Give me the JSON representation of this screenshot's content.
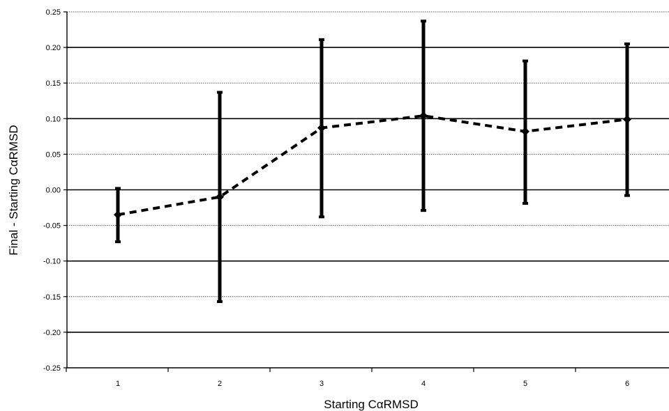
{
  "chart_data": {
    "type": "line",
    "title": "",
    "xlabel": "Starting CαRMSD",
    "ylabel": "Final - Starting CαRMSD",
    "categories": [
      "1",
      "2",
      "3",
      "4",
      "5",
      "6"
    ],
    "x": [
      1,
      2,
      3,
      4,
      5,
      6
    ],
    "series": [
      {
        "values": [
          -0.035,
          -0.01,
          0.087,
          0.104,
          0.082,
          0.099
        ],
        "error_low": [
          -0.073,
          -0.157,
          -0.038,
          -0.029,
          -0.019,
          -0.008
        ],
        "error_high": [
          0.002,
          0.137,
          0.211,
          0.237,
          0.181,
          0.205
        ],
        "line_style": "dashed",
        "marker": "diamond",
        "color": "#000000"
      }
    ],
    "ylim": [
      -0.25,
      0.25
    ],
    "y_ticks": [
      0.25,
      0.2,
      0.15,
      0.1,
      0.05,
      0.0,
      -0.05,
      -0.1,
      -0.15,
      -0.2,
      -0.25
    ],
    "y_tick_labels": [
      "0.25",
      "0.20",
      "0.15",
      "0.10",
      "0.05",
      "0.00",
      "-0.05",
      "-0.10",
      "-0.15",
      "-0.20",
      "-0.25"
    ],
    "grid": {
      "horizontal": true,
      "major": [
        0.2,
        0.1,
        0.0,
        -0.1,
        -0.2
      ],
      "minor": [
        0.25,
        0.15,
        0.05,
        -0.05,
        -0.15
      ]
    },
    "legend": "none"
  }
}
